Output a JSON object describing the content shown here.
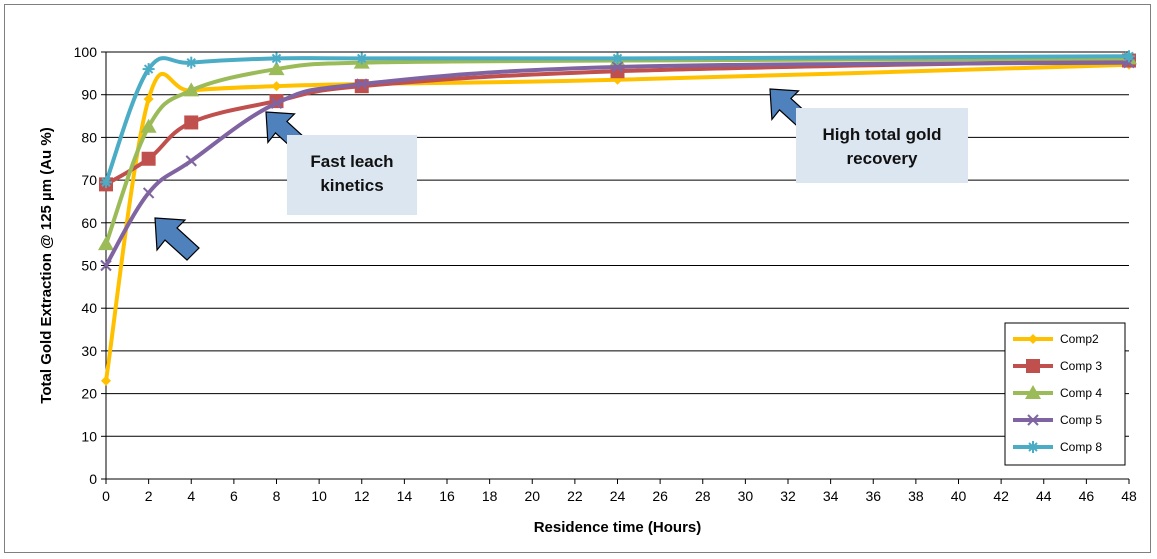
{
  "chart_data": {
    "type": "line",
    "title": "",
    "xlabel": "Residence time (Hours)",
    "ylabel": "Total Gold Extraction @ 125 µm (Au %)",
    "xlim": [
      0,
      48
    ],
    "ylim": [
      0,
      100
    ],
    "xticks": [
      0,
      2,
      4,
      6,
      8,
      10,
      12,
      14,
      16,
      18,
      20,
      22,
      24,
      26,
      28,
      30,
      32,
      34,
      36,
      38,
      40,
      42,
      44,
      46,
      48
    ],
    "yticks": [
      0,
      10,
      20,
      30,
      40,
      50,
      60,
      70,
      80,
      90,
      100
    ],
    "grid": "horizontal",
    "legend_position": "bottom-right",
    "series": [
      {
        "name": "Comp2",
        "color": "#ffc000",
        "marker": "diamond",
        "x": [
          0,
          2,
          4,
          8,
          12,
          24,
          48
        ],
        "y": [
          23,
          89,
          91,
          92,
          92.5,
          93.5,
          97
        ]
      },
      {
        "name": "Comp 3",
        "color": "#c0504d",
        "marker": "square",
        "x": [
          0,
          2,
          4,
          8,
          12,
          24,
          48
        ],
        "y": [
          69,
          75,
          83.5,
          88.5,
          92,
          95.5,
          98
        ]
      },
      {
        "name": "Comp 4",
        "color": "#9bbb59",
        "marker": "triangle",
        "x": [
          0,
          2,
          4,
          8,
          12,
          24,
          48
        ],
        "y": [
          55,
          82.5,
          91,
          96,
          97.5,
          98,
          98.5
        ]
      },
      {
        "name": "Comp 5",
        "color": "#8064a2",
        "marker": "x",
        "x": [
          0,
          2,
          4,
          8,
          12,
          24,
          48
        ],
        "y": [
          50,
          67,
          74.5,
          88,
          92.5,
          96.5,
          97.5
        ]
      },
      {
        "name": "Comp 8",
        "color": "#4bacc6",
        "marker": "star",
        "x": [
          0,
          2,
          4,
          8,
          12,
          24,
          48
        ],
        "y": [
          69.5,
          96,
          97.5,
          98.5,
          98.5,
          98.5,
          99
        ]
      }
    ],
    "annotations": [
      {
        "lines": [
          "Fast leach",
          "kinetics"
        ]
      },
      {
        "lines": [
          "High total gold",
          "recovery"
        ]
      }
    ],
    "colors": {
      "callout_box": "#dce6f1",
      "arrow_fill": "#4f81bd",
      "arrow_stroke": "#000000",
      "gridline": "#000000"
    }
  }
}
